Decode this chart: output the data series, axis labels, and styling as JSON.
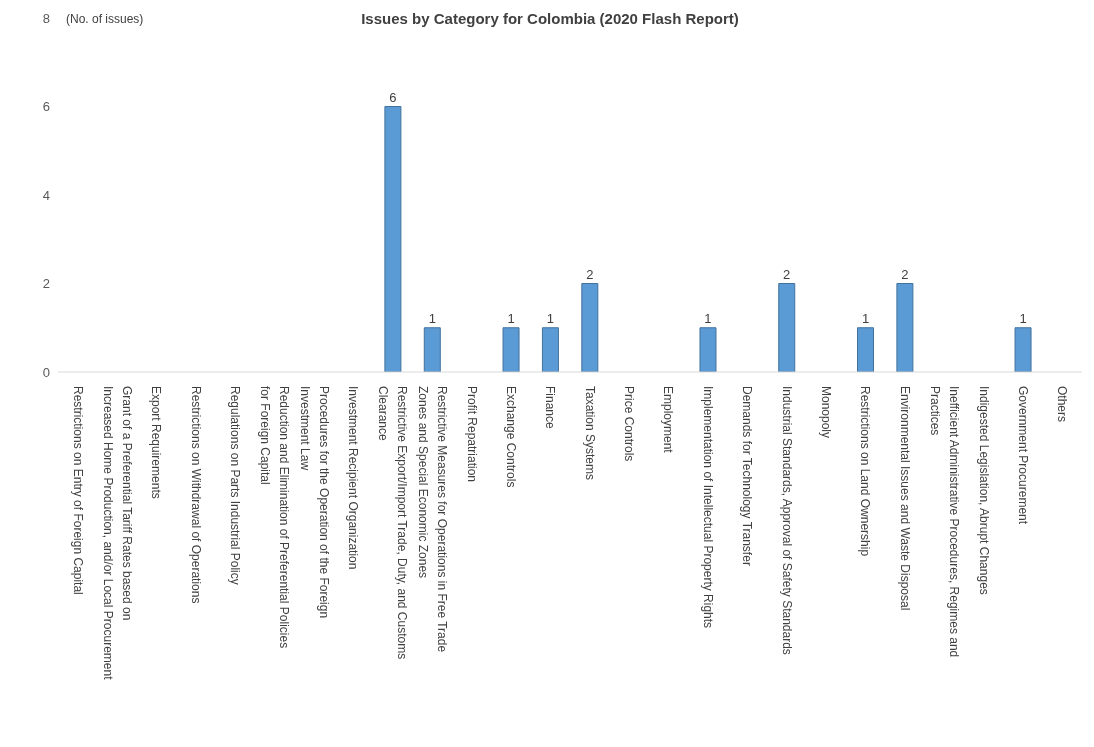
{
  "chart_data": {
    "type": "bar",
    "title": "Issues by Category for Colombia (2020 Flash Report)",
    "ylabel": "(No. of issues)",
    "categories": [
      "Restrictions on Entry of Foreign Capital",
      "Grant of a Preferential Tariff Rates based on Increased Home Production, and/or Local Procurement",
      "Export Requirements",
      "Restrictions on Withdrawal of Operations",
      "Regulations on Parts Industrial Policy",
      "Reduction and Elimination of Preferential Policies for Foreign Capital",
      "Procedures for the Operation of the Foreign Investment Law",
      "Investment Recipient Organization",
      "Restrictive Export/Import Trade, Duty, and Customs Clearance",
      "Restrictive Measures for Operations in Free Trade Zones and Special Economic Zones",
      "Profit Repatriation",
      "Exchange Controls",
      "Finance",
      "Taxation Systems",
      "Price Controls",
      "Employment",
      "Implementation of Intellectual Property Rights",
      "Demands for Technology Transfer",
      "Industrial Standards, Approval of Safety Standards",
      "Monopoly",
      "Restrictions on Land Ownership",
      "Environmental Issues and Waste Disposal",
      "Inefficient Administrative Procedures, Regimes and Practices",
      "Indigested Legislation, Abrupt Changes",
      "Government Procurement",
      "Others"
    ],
    "values": [
      0,
      0,
      0,
      0,
      0,
      0,
      0,
      0,
      6,
      1,
      0,
      1,
      1,
      2,
      0,
      0,
      1,
      0,
      2,
      0,
      1,
      2,
      0,
      0,
      1,
      0
    ],
    "value_labels": [
      null,
      null,
      null,
      null,
      null,
      null,
      null,
      null,
      "6",
      "1",
      null,
      "1",
      "1",
      "2",
      null,
      null,
      "1",
      null,
      "2",
      null,
      "1",
      "2",
      null,
      null,
      "1",
      null
    ],
    "color": "#5b9bd5",
    "ylim": [
      0,
      8
    ],
    "yticks": [
      0,
      2,
      4,
      6,
      8
    ],
    "grid": false
  }
}
